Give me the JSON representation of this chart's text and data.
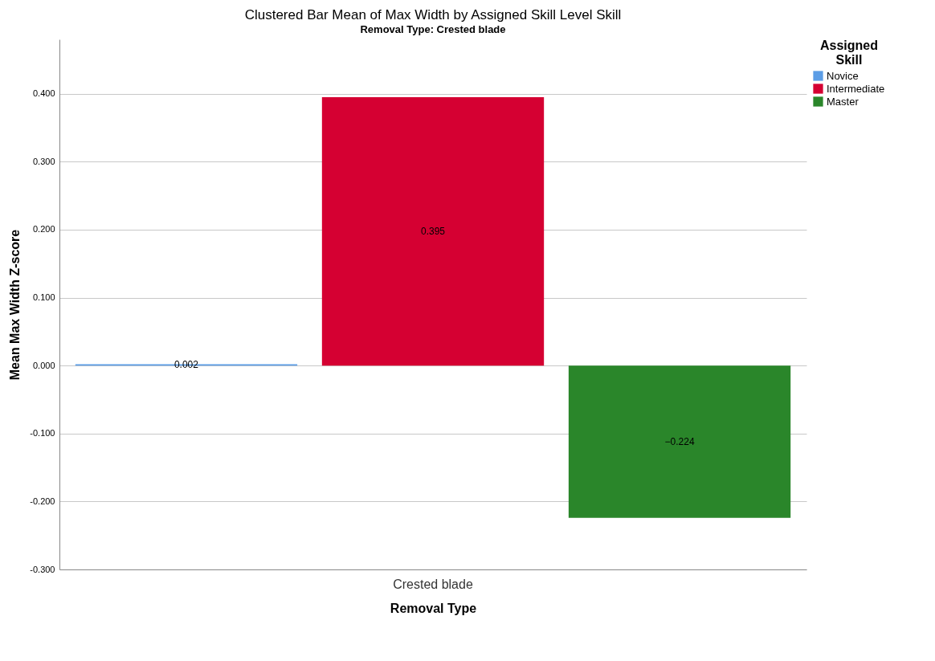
{
  "chart_data": {
    "type": "bar",
    "title": "Clustered Bar Mean of Max Width by Assigned Skill Level Skill",
    "subtitle": "Removal Type: Crested blade",
    "xlabel": "Removal Type",
    "ylabel": "Mean Max Width Z-score",
    "legend_title": "Assigned Skill",
    "categories": [
      "Crested blade"
    ],
    "series": [
      {
        "name": "Novice",
        "color": "#5b9de6",
        "values": [
          0.002
        ]
      },
      {
        "name": "Intermediate",
        "color": "#d50032",
        "values": [
          0.395
        ]
      },
      {
        "name": "Master",
        "color": "#2a862a",
        "values": [
          -0.224
        ]
      }
    ],
    "ylim": [
      -0.3,
      0.48
    ],
    "yticks": [
      {
        "value": -0.3,
        "label": "-0.300"
      },
      {
        "value": -0.2,
        "label": "-0.200"
      },
      {
        "value": -0.1,
        "label": "-0.100"
      },
      {
        "value": 0,
        "label": "0.000"
      },
      {
        "value": 0.1,
        "label": "0.100"
      },
      {
        "value": 0.2,
        "label": "0.200"
      },
      {
        "value": 0.3,
        "label": "0.300"
      },
      {
        "value": 0.4,
        "label": "0.400"
      }
    ],
    "grid": "y",
    "legend": "top right",
    "data_labels": true
  }
}
